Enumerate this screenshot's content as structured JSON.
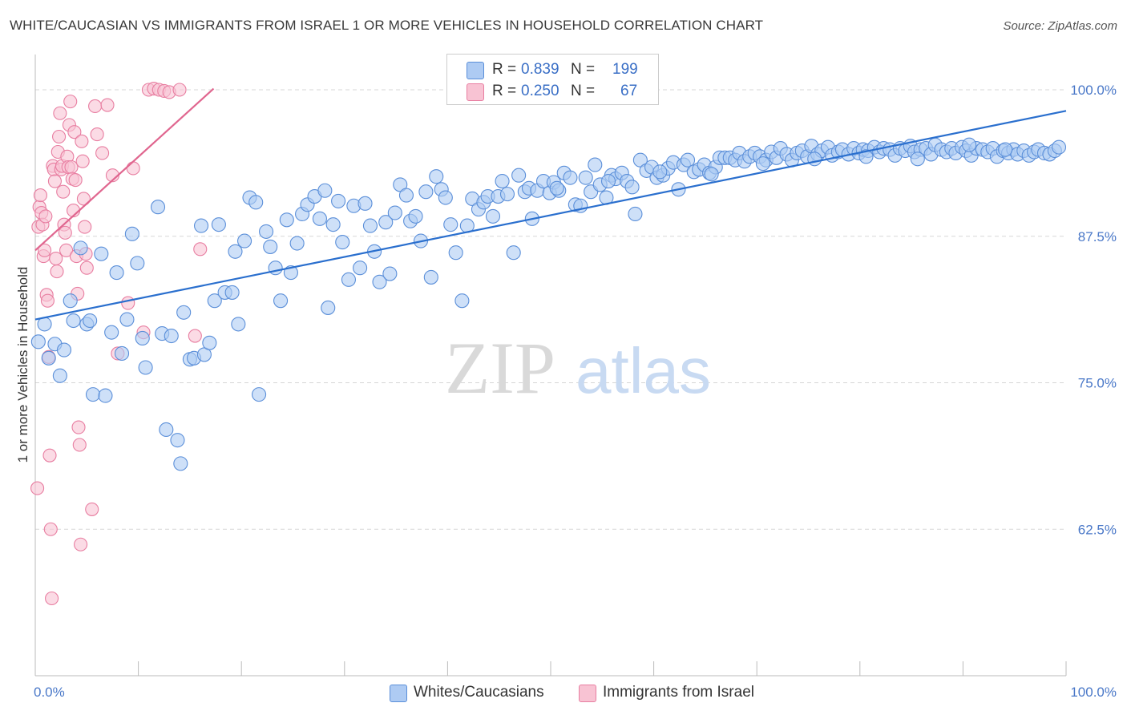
{
  "header": {
    "title": "WHITE/CAUCASIAN VS IMMIGRANTS FROM ISRAEL 1 OR MORE VEHICLES IN HOUSEHOLD CORRELATION CHART",
    "source": "Source: ZipAtlas.com"
  },
  "watermark": {
    "zip": "ZIP",
    "atlas": "atlas"
  },
  "legend": {
    "series": [
      {
        "r_label": "R =",
        "r_value": "0.839",
        "n_label": "N =",
        "n_value": "199"
      },
      {
        "r_label": "R =",
        "r_value": "0.250",
        "n_label": "N =",
        "n_value": "67"
      }
    ]
  },
  "bottom_legend": {
    "items": [
      "Whites/Caucasians",
      "Immigrants from Israel"
    ]
  },
  "chart_data": {
    "type": "scatter",
    "title": "WHITE/CAUCASIAN VS IMMIGRANTS FROM ISRAEL 1 OR MORE VEHICLES IN HOUSEHOLD CORRELATION CHART",
    "ylabel": "1 or more Vehicles in Household",
    "xlim": [
      0,
      100
    ],
    "ylim": [
      50,
      102.6
    ],
    "x_tick_labels": [
      "0.0%",
      "100.0%"
    ],
    "y_ticks": [
      62.5,
      75.0,
      87.5,
      100.0
    ],
    "y_tick_labels": [
      "62.5%",
      "75.0%",
      "87.5%",
      "100.0%"
    ],
    "grid": "horizontal dashed",
    "legend_placement": "top-center",
    "colors": {
      "blue_fill": "#aecbf3",
      "blue_edge": "#5b8fd9",
      "blue_line": "#2a6fce",
      "pink_fill": "#f8c3d3",
      "pink_edge": "#e87ea1",
      "pink_line": "#e0668f",
      "tick_text": "#4a78c8",
      "grid": "#d7d7d7"
    },
    "series": [
      {
        "name": "Whites/Caucasians",
        "color": "#aecbf3",
        "trend": {
          "x": [
            0,
            100
          ],
          "y": [
            80.4,
            98.2
          ]
        },
        "points": [
          [
            0.3,
            78.5
          ],
          [
            0.9,
            80.0
          ],
          [
            1.3,
            77.1
          ],
          [
            1.9,
            78.3
          ],
          [
            2.4,
            75.6
          ],
          [
            2.8,
            77.8
          ],
          [
            3.4,
            82.0
          ],
          [
            3.7,
            80.3
          ],
          [
            4.4,
            86.5
          ],
          [
            5.0,
            80.0
          ],
          [
            5.3,
            80.3
          ],
          [
            5.6,
            74.0
          ],
          [
            6.4,
            86.0
          ],
          [
            6.8,
            73.9
          ],
          [
            7.4,
            79.3
          ],
          [
            7.9,
            84.4
          ],
          [
            8.4,
            77.5
          ],
          [
            8.9,
            80.4
          ],
          [
            9.4,
            87.7
          ],
          [
            9.9,
            85.2
          ],
          [
            10.4,
            78.8
          ],
          [
            10.7,
            76.3
          ],
          [
            11.9,
            90.0
          ],
          [
            12.3,
            79.2
          ],
          [
            12.7,
            71.0
          ],
          [
            13.2,
            79.0
          ],
          [
            13.8,
            70.1
          ],
          [
            14.1,
            68.1
          ],
          [
            14.4,
            81.0
          ],
          [
            15.0,
            77.0
          ],
          [
            15.4,
            77.1
          ],
          [
            16.1,
            88.4
          ],
          [
            16.4,
            77.4
          ],
          [
            16.9,
            78.4
          ],
          [
            17.4,
            82.0
          ],
          [
            17.8,
            88.5
          ],
          [
            18.4,
            82.7
          ],
          [
            19.1,
            82.7
          ],
          [
            19.4,
            86.2
          ],
          [
            19.7,
            80.0
          ],
          [
            20.3,
            87.1
          ],
          [
            20.8,
            90.8
          ],
          [
            21.4,
            90.4
          ],
          [
            21.7,
            74.0
          ],
          [
            22.4,
            87.9
          ],
          [
            22.8,
            86.6
          ],
          [
            23.3,
            84.8
          ],
          [
            23.8,
            82.0
          ],
          [
            24.4,
            88.9
          ],
          [
            24.8,
            84.4
          ],
          [
            25.4,
            86.9
          ],
          [
            25.9,
            89.4
          ],
          [
            26.4,
            90.2
          ],
          [
            27.1,
            90.9
          ],
          [
            27.6,
            89.0
          ],
          [
            28.1,
            91.4
          ],
          [
            28.4,
            81.4
          ],
          [
            28.9,
            88.5
          ],
          [
            29.4,
            90.5
          ],
          [
            29.8,
            87.0
          ],
          [
            30.4,
            83.8
          ],
          [
            30.9,
            90.1
          ],
          [
            31.5,
            84.8
          ],
          [
            32.0,
            90.3
          ],
          [
            32.5,
            88.4
          ],
          [
            32.9,
            86.2
          ],
          [
            33.4,
            83.6
          ],
          [
            34.0,
            88.7
          ],
          [
            34.4,
            84.3
          ],
          [
            34.9,
            89.5
          ],
          [
            35.4,
            91.9
          ],
          [
            36.0,
            91.0
          ],
          [
            36.4,
            88.8
          ],
          [
            36.9,
            89.2
          ],
          [
            37.4,
            87.1
          ],
          [
            37.9,
            91.3
          ],
          [
            38.4,
            84.0
          ],
          [
            38.9,
            92.6
          ],
          [
            39.4,
            91.5
          ],
          [
            39.8,
            90.8
          ],
          [
            40.3,
            88.5
          ],
          [
            40.8,
            86.1
          ],
          [
            41.4,
            82.0
          ],
          [
            41.9,
            88.4
          ],
          [
            42.4,
            90.7
          ],
          [
            43.0,
            89.8
          ],
          [
            43.5,
            90.4
          ],
          [
            43.9,
            90.9
          ],
          [
            44.4,
            89.2
          ],
          [
            44.9,
            90.9
          ],
          [
            45.3,
            92.2
          ],
          [
            45.8,
            91.1
          ],
          [
            46.4,
            86.1
          ],
          [
            46.9,
            92.7
          ],
          [
            47.5,
            91.3
          ],
          [
            47.9,
            91.6
          ],
          [
            48.2,
            89.0
          ],
          [
            48.7,
            91.4
          ],
          [
            49.3,
            92.2
          ],
          [
            49.9,
            91.2
          ],
          [
            50.3,
            92.1
          ],
          [
            50.8,
            91.4
          ],
          [
            51.3,
            92.9
          ],
          [
            51.9,
            92.5
          ],
          [
            52.4,
            90.2
          ],
          [
            52.9,
            90.1
          ],
          [
            53.4,
            92.5
          ],
          [
            53.9,
            91.3
          ],
          [
            54.3,
            93.6
          ],
          [
            54.8,
            91.9
          ],
          [
            55.4,
            90.8
          ],
          [
            55.9,
            92.7
          ],
          [
            56.3,
            92.4
          ],
          [
            56.9,
            92.9
          ],
          [
            57.4,
            92.2
          ],
          [
            57.9,
            91.7
          ],
          [
            58.2,
            89.4
          ],
          [
            58.7,
            94.0
          ],
          [
            59.3,
            93.1
          ],
          [
            59.8,
            93.4
          ],
          [
            60.3,
            92.5
          ],
          [
            60.9,
            92.7
          ],
          [
            61.4,
            93.3
          ],
          [
            61.9,
            93.8
          ],
          [
            62.4,
            91.5
          ],
          [
            62.9,
            93.6
          ],
          [
            63.3,
            94.0
          ],
          [
            63.9,
            93.0
          ],
          [
            64.4,
            93.2
          ],
          [
            64.9,
            93.6
          ],
          [
            65.4,
            92.9
          ],
          [
            66.0,
            93.4
          ],
          [
            66.4,
            94.2
          ],
          [
            66.9,
            94.2
          ],
          [
            67.4,
            94.2
          ],
          [
            67.9,
            94.0
          ],
          [
            68.3,
            94.6
          ],
          [
            68.8,
            93.9
          ],
          [
            69.3,
            94.3
          ],
          [
            69.8,
            94.6
          ],
          [
            70.3,
            94.3
          ],
          [
            70.9,
            94.0
          ],
          [
            71.4,
            94.7
          ],
          [
            71.9,
            94.2
          ],
          [
            72.3,
            95.0
          ],
          [
            72.9,
            94.5
          ],
          [
            73.4,
            94.0
          ],
          [
            73.9,
            94.6
          ],
          [
            74.4,
            94.8
          ],
          [
            74.9,
            94.3
          ],
          [
            75.3,
            95.2
          ],
          [
            75.9,
            94.5
          ],
          [
            76.3,
            94.8
          ],
          [
            76.9,
            95.1
          ],
          [
            77.3,
            94.4
          ],
          [
            77.9,
            94.7
          ],
          [
            78.3,
            94.9
          ],
          [
            78.9,
            94.5
          ],
          [
            79.4,
            95.0
          ],
          [
            79.9,
            94.6
          ],
          [
            80.3,
            94.9
          ],
          [
            80.8,
            94.8
          ],
          [
            81.4,
            95.1
          ],
          [
            81.9,
            94.7
          ],
          [
            82.3,
            95.0
          ],
          [
            82.9,
            94.9
          ],
          [
            83.4,
            94.4
          ],
          [
            83.9,
            95.0
          ],
          [
            84.4,
            94.8
          ],
          [
            84.9,
            95.2
          ],
          [
            85.3,
            94.7
          ],
          [
            85.9,
            94.9
          ],
          [
            86.4,
            95.0
          ],
          [
            86.9,
            94.5
          ],
          [
            87.3,
            95.3
          ],
          [
            87.9,
            94.9
          ],
          [
            88.4,
            94.7
          ],
          [
            88.9,
            95.0
          ],
          [
            89.3,
            94.6
          ],
          [
            89.9,
            95.1
          ],
          [
            90.3,
            94.8
          ],
          [
            90.8,
            94.4
          ],
          [
            91.3,
            95.0
          ],
          [
            91.9,
            94.9
          ],
          [
            92.4,
            94.7
          ],
          [
            92.9,
            95.0
          ],
          [
            93.3,
            94.3
          ],
          [
            93.9,
            94.8
          ],
          [
            94.4,
            94.6
          ],
          [
            94.9,
            94.9
          ],
          [
            95.3,
            94.5
          ],
          [
            95.9,
            94.8
          ],
          [
            96.4,
            94.4
          ],
          [
            96.9,
            94.7
          ],
          [
            97.3,
            94.9
          ],
          [
            97.9,
            94.6
          ],
          [
            98.4,
            94.5
          ],
          [
            98.9,
            94.8
          ],
          [
            99.3,
            95.1
          ],
          [
            94.1,
            94.9
          ],
          [
            90.6,
            95.3
          ],
          [
            85.6,
            94.1
          ],
          [
            80.6,
            94.3
          ],
          [
            75.6,
            94.1
          ],
          [
            70.6,
            93.7
          ],
          [
            65.6,
            92.8
          ],
          [
            60.6,
            93.0
          ],
          [
            55.6,
            92.2
          ],
          [
            50.6,
            91.6
          ]
        ]
      },
      {
        "name": "Immigrants from Israel",
        "color": "#f8c3d3",
        "trend": {
          "x": [
            0,
            17.3
          ],
          "y": [
            86.3,
            100.1
          ]
        },
        "points": [
          [
            0.2,
            66.0
          ],
          [
            0.3,
            88.3
          ],
          [
            0.4,
            90.0
          ],
          [
            0.5,
            91.0
          ],
          [
            0.6,
            89.5
          ],
          [
            0.7,
            88.5
          ],
          [
            0.8,
            85.8
          ],
          [
            0.9,
            86.3
          ],
          [
            1.0,
            89.2
          ],
          [
            1.1,
            82.5
          ],
          [
            1.2,
            82.0
          ],
          [
            1.3,
            77.2
          ],
          [
            1.4,
            68.8
          ],
          [
            1.5,
            62.5
          ],
          [
            1.6,
            56.6
          ],
          [
            1.7,
            93.5
          ],
          [
            1.8,
            93.2
          ],
          [
            1.9,
            92.2
          ],
          [
            2.0,
            85.6
          ],
          [
            2.1,
            84.5
          ],
          [
            2.2,
            94.7
          ],
          [
            2.3,
            96.0
          ],
          [
            2.4,
            98.0
          ],
          [
            2.5,
            93.2
          ],
          [
            2.6,
            93.5
          ],
          [
            2.7,
            91.3
          ],
          [
            2.8,
            88.5
          ],
          [
            2.9,
            87.8
          ],
          [
            3.0,
            86.3
          ],
          [
            3.1,
            94.3
          ],
          [
            3.2,
            93.4
          ],
          [
            3.3,
            97.0
          ],
          [
            3.4,
            99.0
          ],
          [
            3.5,
            93.4
          ],
          [
            3.6,
            92.4
          ],
          [
            3.7,
            89.7
          ],
          [
            3.8,
            96.4
          ],
          [
            3.9,
            92.3
          ],
          [
            4.0,
            85.8
          ],
          [
            4.1,
            82.6
          ],
          [
            4.2,
            71.2
          ],
          [
            4.3,
            69.7
          ],
          [
            4.4,
            61.2
          ],
          [
            4.5,
            95.6
          ],
          [
            4.6,
            93.9
          ],
          [
            4.7,
            90.7
          ],
          [
            4.8,
            88.3
          ],
          [
            4.9,
            86.0
          ],
          [
            5.0,
            84.8
          ],
          [
            5.5,
            64.2
          ],
          [
            5.8,
            98.6
          ],
          [
            6.0,
            96.2
          ],
          [
            6.5,
            94.6
          ],
          [
            7.0,
            98.7
          ],
          [
            7.5,
            92.7
          ],
          [
            8.0,
            77.5
          ],
          [
            9.0,
            81.8
          ],
          [
            9.5,
            93.3
          ],
          [
            10.5,
            79.3
          ],
          [
            11.0,
            100.0
          ],
          [
            11.5,
            100.1
          ],
          [
            12.0,
            100.0
          ],
          [
            12.5,
            99.9
          ],
          [
            13.0,
            99.8
          ],
          [
            14.0,
            100.0
          ],
          [
            15.5,
            79.0
          ],
          [
            16.0,
            86.4
          ]
        ]
      }
    ]
  }
}
